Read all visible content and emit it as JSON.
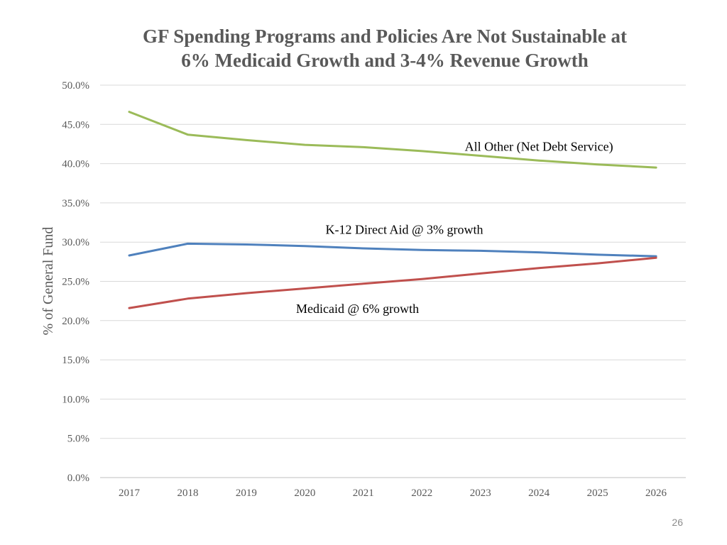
{
  "chart_data": {
    "type": "line",
    "title_lines": [
      "GF Spending Programs and Policies Are Not Sustainable at",
      "6% Medicaid Growth and 3-4% Revenue Growth"
    ],
    "xlabel": "",
    "ylabel": "% of General Fund",
    "categories": [
      "2017",
      "2018",
      "2019",
      "2020",
      "2021",
      "2022",
      "2023",
      "2024",
      "2025",
      "2026"
    ],
    "y_ticks": [
      "0.0%",
      "5.0%",
      "10.0%",
      "15.0%",
      "20.0%",
      "25.0%",
      "30.0%",
      "35.0%",
      "40.0%",
      "45.0%",
      "50.0%"
    ],
    "ylim": [
      0,
      50
    ],
    "grid": true,
    "series": [
      {
        "name": "All Other (Net Debt Service)",
        "color": "#9bbb59",
        "values": [
          46.6,
          43.7,
          43.0,
          42.4,
          42.1,
          41.6,
          41.0,
          40.4,
          39.9,
          39.5
        ]
      },
      {
        "name": "K-12 Direct Aid @ 3% growth",
        "color": "#4f81bd",
        "values": [
          28.3,
          29.8,
          29.7,
          29.5,
          29.2,
          29.0,
          28.9,
          28.7,
          28.4,
          28.2
        ]
      },
      {
        "name": "Medicaid @ 6% growth",
        "color": "#c0504d",
        "values": [
          21.6,
          22.8,
          23.5,
          24.1,
          24.7,
          25.3,
          26.0,
          26.7,
          27.3,
          28.0
        ]
      }
    ],
    "annotations": [
      {
        "text": "All Other (Net Debt Service)",
        "x": "2024",
        "y": 42.2
      },
      {
        "text": "K-12 Direct Aid @ 3% growth",
        "x": "2021.7",
        "y": 31.6
      },
      {
        "text": "Medicaid @ 6% growth",
        "x": "2020.9",
        "y": 21.5
      }
    ]
  },
  "slide": {
    "page_number": "26"
  }
}
